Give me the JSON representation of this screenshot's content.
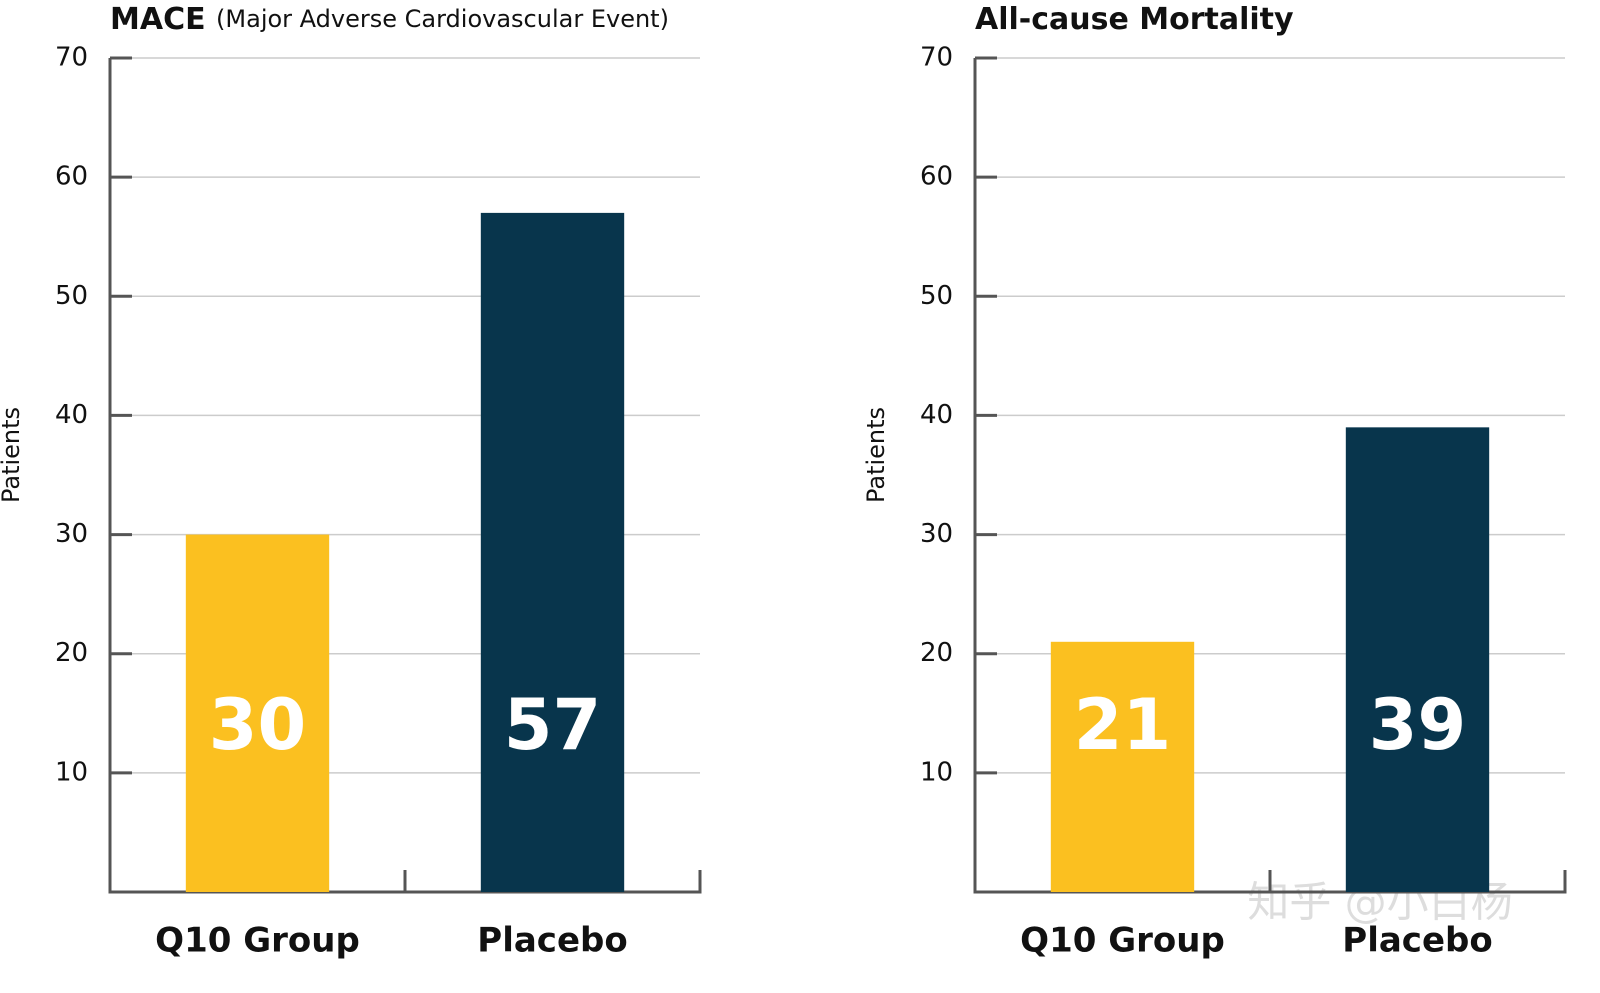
{
  "chart_data": [
    {
      "type": "bar",
      "title": "MACE",
      "subtitle": "(Major Adverse Cardiovascular Event)",
      "y_label": "Patients",
      "categories": [
        "Q10 Group",
        "Placebo"
      ],
      "values": [
        30,
        57
      ],
      "colors": [
        "#fbc020",
        "#08354c"
      ],
      "ylim": [
        0,
        70
      ],
      "yticks": [
        10,
        20,
        30,
        40,
        50,
        60,
        70
      ],
      "grid": true
    },
    {
      "type": "bar",
      "title": "All-cause Mortality",
      "y_label": "Patients",
      "categories": [
        "Q10 Group",
        "Placebo"
      ],
      "values": [
        21,
        39
      ],
      "colors": [
        "#fbc020",
        "#08354c"
      ],
      "ylim": [
        0,
        70
      ],
      "yticks": [
        10,
        20,
        30,
        40,
        50,
        60,
        70
      ],
      "grid": true
    }
  ],
  "watermark": "知乎 @小白杨"
}
